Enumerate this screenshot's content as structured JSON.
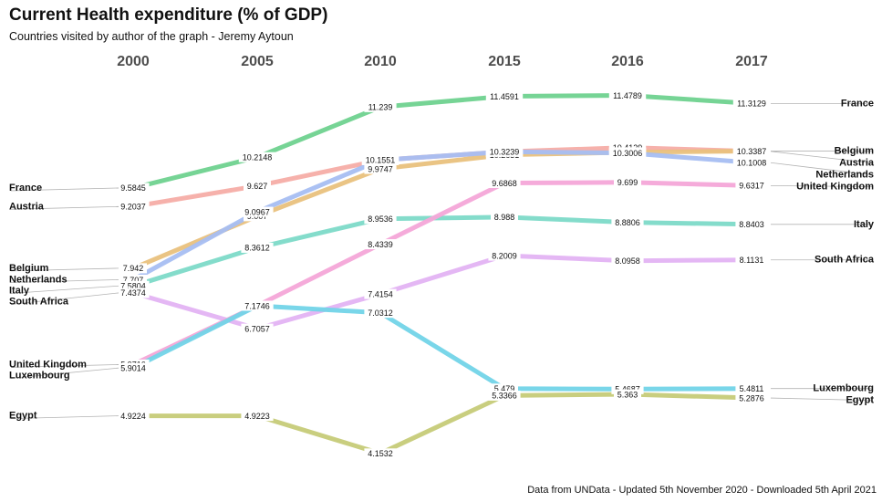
{
  "title": "Current Health expenditure (% of GDP)",
  "subtitle": "Countries visited by author of the graph - Jeremy Aytoun",
  "caption": "Data from UNData - Updated 5th November 2020 - Downloaded 5th April 2021",
  "chart_data": {
    "type": "slope",
    "title": "Current Health expenditure (% of GDP)",
    "subtitle": "Countries visited by author of the graph - Jeremy Aytoun",
    "x": [
      "2000",
      "2005",
      "2010",
      "2015",
      "2016",
      "2017"
    ],
    "ylim": [
      4.0,
      11.6
    ],
    "grid": false,
    "legend": "none",
    "series": [
      {
        "name": "France",
        "color": "#6fd28f",
        "values": [
          9.5845,
          10.2148,
          11.239,
          11.4591,
          11.4789,
          11.3129
        ],
        "labels": [
          "9.5845",
          "10.2148",
          "11.239",
          "11.4591",
          "11.4789",
          "11.3129"
        ]
      },
      {
        "name": "Austria",
        "color": "#f6ada7",
        "values": [
          9.2037,
          9.627,
          10.1551,
          10.3239,
          10.4129,
          10.3339
        ],
        "labels": [
          "9.2037",
          "9.627",
          "10.1551",
          "10.3239",
          "10.4129",
          "10.3339"
        ]
      },
      {
        "name": "Belgium",
        "color": "#e9c17d",
        "values": [
          7.942,
          9.007,
          9.9747,
          10.2631,
          10.3138,
          10.3387
        ],
        "labels": [
          "7.942",
          "9.007",
          "9.9747",
          "10.2631",
          "10.3138",
          "10.3387"
        ]
      },
      {
        "name": "Netherlands",
        "color": "#a6bef2",
        "values": [
          7.707,
          9.0967,
          10.1551,
          10.3239,
          10.3006,
          10.1008
        ],
        "labels": [
          "7.707",
          "9.0967",
          "10.1551",
          "10.3239",
          "10.3006",
          "10.1008"
        ]
      },
      {
        "name": "Italy",
        "color": "#7ddac8",
        "values": [
          7.5804,
          8.3612,
          8.9536,
          8.988,
          8.8806,
          8.8403
        ],
        "labels": [
          "7.5804",
          "8.3612",
          "8.9536",
          "8.988",
          "8.8806",
          "8.8403"
        ]
      },
      {
        "name": "South Africa",
        "color": "#e3b3f3",
        "values": [
          7.4374,
          6.7057,
          7.4154,
          8.2009,
          8.0958,
          8.1131
        ],
        "labels": [
          "7.4374",
          "6.7057",
          "7.4154",
          "8.2009",
          "8.0958",
          "8.1131"
        ]
      },
      {
        "name": "United Kingdom",
        "color": "#f4a7d8",
        "values": [
          5.9716,
          7.1746,
          8.4339,
          9.6868,
          9.699,
          9.6317
        ],
        "labels": [
          "5.9716",
          "7.1746",
          "8.4339",
          "9.6868",
          "9.699",
          "9.6317"
        ]
      },
      {
        "name": "Luxembourg",
        "color": "#72d4e8",
        "values": [
          5.9014,
          7.1746,
          7.0312,
          5.479,
          5.4687,
          5.4811
        ],
        "labels": [
          "5.9014",
          "7.1746",
          "7.0312",
          "5.479",
          "5.4687",
          "5.4811"
        ]
      },
      {
        "name": "Egypt",
        "color": "#c6cb78",
        "values": [
          4.9224,
          4.9223,
          4.1532,
          5.3366,
          5.363,
          5.2876
        ],
        "labels": [
          "4.9224",
          "4.9223",
          "4.1532",
          "5.3366",
          "5.363",
          "5.2876"
        ]
      }
    ],
    "left_labels": [
      {
        "name": "France",
        "value": 9.5845
      },
      {
        "name": "Austria",
        "value": 9.2037
      },
      {
        "name": "Belgium",
        "value": 7.942
      },
      {
        "name": "Netherlands",
        "value": 7.707
      },
      {
        "name": "Italy",
        "value": 7.5804
      },
      {
        "name": "South Africa",
        "value": 7.4374
      },
      {
        "name": "United Kingdom",
        "value": 5.9716
      },
      {
        "name": "Luxembourg",
        "value": 5.9014
      },
      {
        "name": "Egypt",
        "value": 4.9224
      }
    ],
    "right_labels": [
      {
        "name": "France",
        "value": 11.3129
      },
      {
        "name": "Austria",
        "value": 10.3339
      },
      {
        "name": "Belgium",
        "value": 10.3387
      },
      {
        "name": "Netherlands",
        "value": 10.1008
      },
      {
        "name": "United Kingdom",
        "value": 9.6317
      },
      {
        "name": "Italy",
        "value": 8.8403
      },
      {
        "name": "South Africa",
        "value": 8.1131
      },
      {
        "name": "Luxembourg",
        "value": 5.4811
      },
      {
        "name": "Egypt",
        "value": 5.2876
      }
    ]
  }
}
